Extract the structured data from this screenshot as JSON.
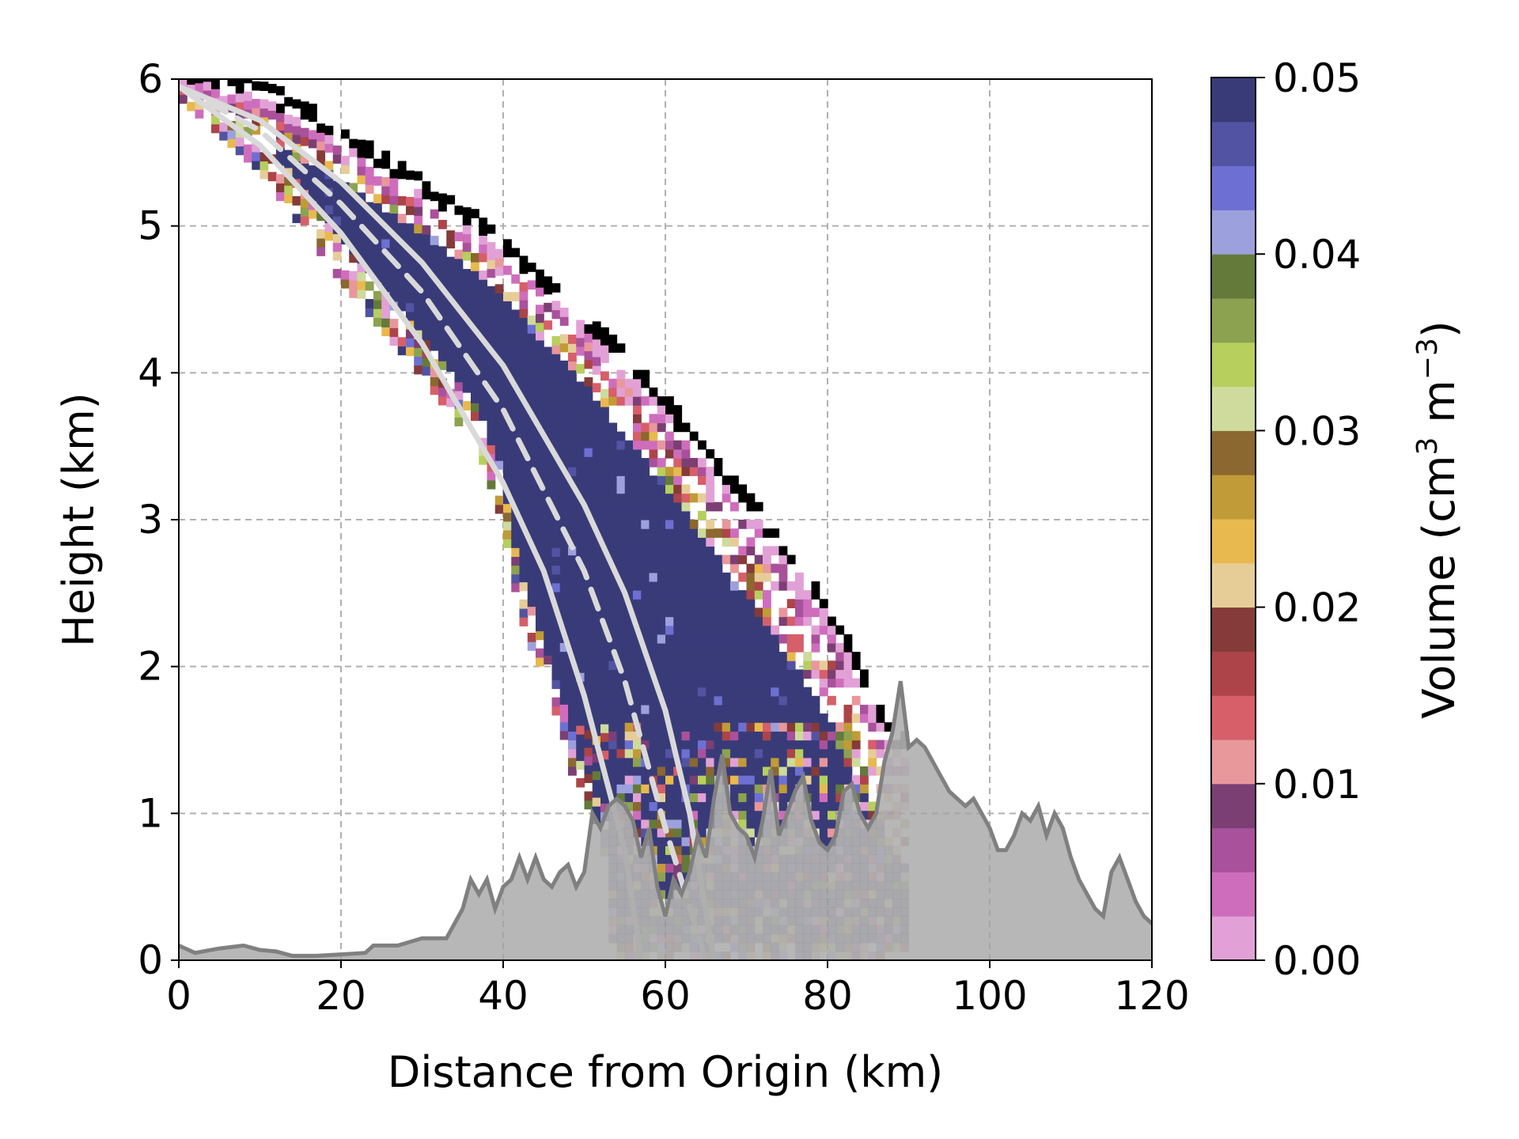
{
  "chart_data": {
    "type": "heatmap",
    "title": "",
    "xlabel": "Distance from Origin (km)",
    "ylabel": "Height (km)",
    "xlim": [
      0,
      120
    ],
    "ylim": [
      0,
      6
    ],
    "x_ticks": [
      "0",
      "20",
      "40",
      "60",
      "80",
      "100",
      "120"
    ],
    "y_ticks": [
      "0",
      "1",
      "2",
      "3",
      "4",
      "5",
      "6"
    ],
    "grid": true,
    "colorbar": {
      "label_main": "Volume (cm",
      "label_exp1": "3",
      "label_mid": " m",
      "label_exp2": "−3",
      "label_end": ")",
      "range": [
        0.0,
        0.05
      ],
      "ticks": [
        "0.00",
        "0.01",
        "0.02",
        "0.03",
        "0.04",
        "0.05"
      ],
      "colors": [
        "#e2a1d6",
        "#cf6dbd",
        "#a9519b",
        "#7b3f73",
        "#e8979b",
        "#d65f69",
        "#ad4449",
        "#843b39",
        "#e6cd98",
        "#e7b94f",
        "#c19b37",
        "#8a6830",
        "#cedb9c",
        "#b6cf5d",
        "#8ca250",
        "#647a3a",
        "#9ca0dd",
        "#6d70d2",
        "#5253a2",
        "#393b79"
      ]
    },
    "series": [
      {
        "type": "heatmap-volume",
        "description_values": "retrieved volume along the beam path",
        "upper_edge": [
          [
            0,
            6.0
          ],
          [
            10,
            5.85
          ],
          [
            20,
            5.55
          ],
          [
            30,
            5.2
          ],
          [
            40,
            4.8
          ],
          [
            50,
            4.3
          ],
          [
            60,
            3.7
          ],
          [
            70,
            3.05
          ],
          [
            75,
            2.7
          ],
          [
            80,
            2.3
          ],
          [
            85,
            1.8
          ],
          [
            88,
            1.4
          ]
        ],
        "lower_edge": [
          [
            0,
            6.0
          ],
          [
            10,
            5.5
          ],
          [
            20,
            4.75
          ],
          [
            30,
            4.1
          ],
          [
            37,
            3.6
          ],
          [
            40,
            3.1
          ],
          [
            42,
            2.5
          ],
          [
            45,
            2.0
          ],
          [
            48,
            1.5
          ],
          [
            50,
            1.1
          ],
          [
            53,
            0.8
          ]
        ],
        "saturated_value": 0.05
      },
      {
        "type": "line",
        "style": "dashed",
        "color": "#d9d9d9",
        "points": [
          [
            0,
            5.95
          ],
          [
            10,
            5.65
          ],
          [
            20,
            5.15
          ],
          [
            30,
            4.55
          ],
          [
            40,
            3.75
          ],
          [
            50,
            2.65
          ],
          [
            55,
            1.9
          ],
          [
            60,
            0.9
          ],
          [
            65,
            0.0
          ]
        ]
      },
      {
        "type": "line",
        "style": "solid",
        "color": "#d9d9d9",
        "points": [
          [
            0,
            5.95
          ],
          [
            10,
            5.55
          ],
          [
            20,
            4.95
          ],
          [
            30,
            4.2
          ],
          [
            40,
            3.25
          ],
          [
            45,
            2.65
          ],
          [
            50,
            1.8
          ],
          [
            55,
            0.75
          ],
          [
            57,
            0.0
          ]
        ]
      },
      {
        "type": "line",
        "style": "solid",
        "color": "#d9d9d9",
        "points": [
          [
            0,
            5.95
          ],
          [
            10,
            5.72
          ],
          [
            20,
            5.3
          ],
          [
            30,
            4.75
          ],
          [
            40,
            4.05
          ],
          [
            50,
            3.1
          ],
          [
            55,
            2.5
          ],
          [
            60,
            1.7
          ],
          [
            63,
            1.0
          ],
          [
            66,
            0.0
          ]
        ]
      },
      {
        "type": "area",
        "name": "terrain",
        "fill": "#a3a3a3",
        "edge": "#808080",
        "points": [
          [
            0,
            0.1
          ],
          [
            2,
            0.05
          ],
          [
            5,
            0.08
          ],
          [
            8,
            0.1
          ],
          [
            10,
            0.07
          ],
          [
            12,
            0.06
          ],
          [
            14,
            0.03
          ],
          [
            17,
            0.03
          ],
          [
            20,
            0.04
          ],
          [
            23,
            0.05
          ],
          [
            24,
            0.1
          ],
          [
            27,
            0.1
          ],
          [
            30,
            0.15
          ],
          [
            33,
            0.15
          ],
          [
            35,
            0.35
          ],
          [
            36,
            0.55
          ],
          [
            37,
            0.45
          ],
          [
            38,
            0.55
          ],
          [
            39,
            0.35
          ],
          [
            40,
            0.5
          ],
          [
            41,
            0.55
          ],
          [
            42,
            0.7
          ],
          [
            43,
            0.55
          ],
          [
            44,
            0.7
          ],
          [
            45,
            0.55
          ],
          [
            46,
            0.5
          ],
          [
            47,
            0.6
          ],
          [
            48,
            0.65
          ],
          [
            49,
            0.5
          ],
          [
            50,
            0.6
          ],
          [
            51,
            1.0
          ],
          [
            52,
            0.9
          ],
          [
            53,
            1.05
          ],
          [
            54,
            1.1
          ],
          [
            55,
            1.05
          ],
          [
            56,
            0.95
          ],
          [
            57,
            0.7
          ],
          [
            58,
            0.9
          ],
          [
            59,
            0.5
          ],
          [
            60,
            0.3
          ],
          [
            61,
            0.55
          ],
          [
            62,
            0.45
          ],
          [
            63,
            0.6
          ],
          [
            64,
            0.85
          ],
          [
            65,
            0.7
          ],
          [
            66,
            1.1
          ],
          [
            67,
            1.4
          ],
          [
            68,
            1.0
          ],
          [
            69,
            0.9
          ],
          [
            70,
            0.85
          ],
          [
            71,
            0.7
          ],
          [
            72,
            0.95
          ],
          [
            73,
            1.3
          ],
          [
            74,
            0.85
          ],
          [
            75,
            1.0
          ],
          [
            76,
            1.15
          ],
          [
            77,
            1.25
          ],
          [
            78,
            0.95
          ],
          [
            79,
            0.8
          ],
          [
            80,
            0.75
          ],
          [
            81,
            0.85
          ],
          [
            82,
            1.15
          ],
          [
            83,
            1.2
          ],
          [
            84,
            1.0
          ],
          [
            85,
            0.9
          ],
          [
            86,
            1.0
          ],
          [
            87,
            1.35
          ],
          [
            88,
            1.55
          ],
          [
            89,
            1.9
          ],
          [
            90,
            1.45
          ],
          [
            91,
            1.5
          ],
          [
            92,
            1.45
          ],
          [
            93,
            1.35
          ],
          [
            94,
            1.25
          ],
          [
            95,
            1.15
          ],
          [
            96,
            1.1
          ],
          [
            97,
            1.05
          ],
          [
            98,
            1.1
          ],
          [
            99,
            1.0
          ],
          [
            100,
            0.9
          ],
          [
            101,
            0.75
          ],
          [
            102,
            0.75
          ],
          [
            103,
            0.85
          ],
          [
            104,
            1.0
          ],
          [
            105,
            0.95
          ],
          [
            106,
            1.05
          ],
          [
            107,
            0.85
          ],
          [
            108,
            1.0
          ],
          [
            109,
            0.9
          ],
          [
            110,
            0.7
          ],
          [
            111,
            0.55
          ],
          [
            112,
            0.45
          ],
          [
            113,
            0.35
          ],
          [
            114,
            0.3
          ],
          [
            115,
            0.6
          ],
          [
            116,
            0.7
          ],
          [
            117,
            0.55
          ],
          [
            118,
            0.4
          ],
          [
            119,
            0.3
          ],
          [
            120,
            0.25
          ]
        ]
      }
    ]
  }
}
